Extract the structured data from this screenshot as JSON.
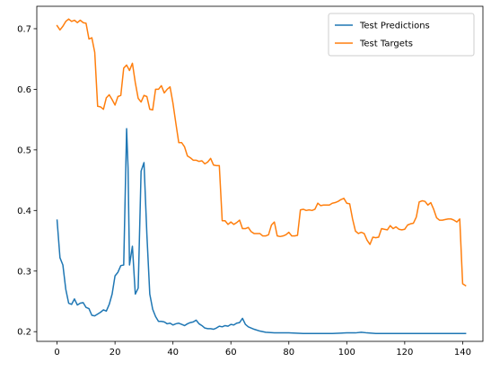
{
  "chart_data": {
    "type": "line",
    "title": "",
    "xlabel": "",
    "ylabel": "",
    "xlim": [
      -7,
      147
    ],
    "ylim": [
      0.184,
      0.737
    ],
    "xticks": [
      0,
      20,
      40,
      60,
      80,
      100,
      120,
      140
    ],
    "yticks": [
      0.2,
      0.3,
      0.4,
      0.5,
      0.6,
      0.7
    ],
    "grid": false,
    "legend_position": "top-right",
    "series": [
      {
        "name": "Test Predictions",
        "color": "#1f77b4",
        "points": [
          [
            0,
            0.384
          ],
          [
            1,
            0.322
          ],
          [
            2,
            0.31
          ],
          [
            3,
            0.27
          ],
          [
            4,
            0.247
          ],
          [
            5,
            0.245
          ],
          [
            6,
            0.254
          ],
          [
            7,
            0.244
          ],
          [
            8,
            0.247
          ],
          [
            9,
            0.248
          ],
          [
            10,
            0.24
          ],
          [
            11,
            0.238
          ],
          [
            12,
            0.227
          ],
          [
            13,
            0.226
          ],
          [
            14,
            0.229
          ],
          [
            15,
            0.232
          ],
          [
            16,
            0.236
          ],
          [
            17,
            0.234
          ],
          [
            18,
            0.245
          ],
          [
            19,
            0.262
          ],
          [
            20,
            0.292
          ],
          [
            21,
            0.298
          ],
          [
            22,
            0.309
          ],
          [
            23,
            0.31
          ],
          [
            24,
            0.535
          ],
          [
            24.5,
            0.47
          ],
          [
            25,
            0.31
          ],
          [
            26,
            0.341
          ],
          [
            27,
            0.262
          ],
          [
            28,
            0.272
          ],
          [
            29,
            0.465
          ],
          [
            30,
            0.479
          ],
          [
            31,
            0.36
          ],
          [
            32,
            0.262
          ],
          [
            33,
            0.237
          ],
          [
            34,
            0.225
          ],
          [
            35,
            0.217
          ],
          [
            36,
            0.217
          ],
          [
            37,
            0.216
          ],
          [
            38,
            0.213
          ],
          [
            39,
            0.214
          ],
          [
            40,
            0.211
          ],
          [
            41,
            0.213
          ],
          [
            42,
            0.214
          ],
          [
            43,
            0.212
          ],
          [
            44,
            0.21
          ],
          [
            45,
            0.213
          ],
          [
            46,
            0.215
          ],
          [
            47,
            0.216
          ],
          [
            48,
            0.219
          ],
          [
            49,
            0.213
          ],
          [
            50,
            0.21
          ],
          [
            51,
            0.206
          ],
          [
            52,
            0.205
          ],
          [
            53,
            0.205
          ],
          [
            54,
            0.204
          ],
          [
            55,
            0.206
          ],
          [
            56,
            0.209
          ],
          [
            57,
            0.208
          ],
          [
            58,
            0.21
          ],
          [
            59,
            0.209
          ],
          [
            60,
            0.212
          ],
          [
            61,
            0.211
          ],
          [
            62,
            0.214
          ],
          [
            63,
            0.215
          ],
          [
            64,
            0.222
          ],
          [
            65,
            0.212
          ],
          [
            66,
            0.208
          ],
          [
            67,
            0.206
          ],
          [
            68,
            0.204
          ],
          [
            70,
            0.201
          ],
          [
            72,
            0.199
          ],
          [
            75,
            0.198
          ],
          [
            80,
            0.198
          ],
          [
            85,
            0.197
          ],
          [
            90,
            0.197
          ],
          [
            95,
            0.197
          ],
          [
            100,
            0.198
          ],
          [
            103,
            0.198
          ],
          [
            105,
            0.199
          ],
          [
            107,
            0.198
          ],
          [
            110,
            0.197
          ],
          [
            120,
            0.197
          ],
          [
            130,
            0.197
          ],
          [
            141,
            0.197
          ]
        ]
      },
      {
        "name": "Test Targets",
        "color": "#ff7f0e",
        "points": [
          [
            0,
            0.705
          ],
          [
            1,
            0.698
          ],
          [
            2,
            0.704
          ],
          [
            3,
            0.712
          ],
          [
            4,
            0.716
          ],
          [
            5,
            0.712
          ],
          [
            6,
            0.714
          ],
          [
            7,
            0.71
          ],
          [
            8,
            0.714
          ],
          [
            9,
            0.71
          ],
          [
            10,
            0.709
          ],
          [
            11,
            0.683
          ],
          [
            12,
            0.685
          ],
          [
            13,
            0.661
          ],
          [
            14,
            0.572
          ],
          [
            15,
            0.571
          ],
          [
            16,
            0.567
          ],
          [
            17,
            0.586
          ],
          [
            18,
            0.591
          ],
          [
            19,
            0.583
          ],
          [
            20,
            0.574
          ],
          [
            21,
            0.588
          ],
          [
            22,
            0.59
          ],
          [
            23,
            0.635
          ],
          [
            24,
            0.64
          ],
          [
            25,
            0.631
          ],
          [
            26,
            0.643
          ],
          [
            27,
            0.611
          ],
          [
            28,
            0.585
          ],
          [
            29,
            0.579
          ],
          [
            30,
            0.59
          ],
          [
            31,
            0.588
          ],
          [
            32,
            0.567
          ],
          [
            33,
            0.566
          ],
          [
            34,
            0.6
          ],
          [
            35,
            0.6
          ],
          [
            36,
            0.606
          ],
          [
            37,
            0.594
          ],
          [
            38,
            0.6
          ],
          [
            39,
            0.604
          ],
          [
            40,
            0.577
          ],
          [
            41,
            0.544
          ],
          [
            42,
            0.512
          ],
          [
            43,
            0.512
          ],
          [
            44,
            0.505
          ],
          [
            45,
            0.49
          ],
          [
            46,
            0.487
          ],
          [
            47,
            0.483
          ],
          [
            48,
            0.483
          ],
          [
            49,
            0.481
          ],
          [
            50,
            0.482
          ],
          [
            51,
            0.477
          ],
          [
            52,
            0.48
          ],
          [
            53,
            0.486
          ],
          [
            54,
            0.475
          ],
          [
            55,
            0.474
          ],
          [
            56,
            0.474
          ],
          [
            57,
            0.383
          ],
          [
            58,
            0.383
          ],
          [
            59,
            0.377
          ],
          [
            60,
            0.381
          ],
          [
            61,
            0.377
          ],
          [
            62,
            0.38
          ],
          [
            63,
            0.384
          ],
          [
            64,
            0.37
          ],
          [
            65,
            0.37
          ],
          [
            66,
            0.372
          ],
          [
            67,
            0.365
          ],
          [
            68,
            0.362
          ],
          [
            69,
            0.362
          ],
          [
            70,
            0.362
          ],
          [
            71,
            0.358
          ],
          [
            72,
            0.358
          ],
          [
            73,
            0.36
          ],
          [
            74,
            0.376
          ],
          [
            75,
            0.381
          ],
          [
            76,
            0.358
          ],
          [
            77,
            0.357
          ],
          [
            78,
            0.358
          ],
          [
            79,
            0.36
          ],
          [
            80,
            0.364
          ],
          [
            81,
            0.358
          ],
          [
            82,
            0.358
          ],
          [
            83,
            0.359
          ],
          [
            84,
            0.401
          ],
          [
            85,
            0.402
          ],
          [
            86,
            0.4
          ],
          [
            87,
            0.401
          ],
          [
            88,
            0.4
          ],
          [
            89,
            0.402
          ],
          [
            90,
            0.412
          ],
          [
            91,
            0.408
          ],
          [
            92,
            0.409
          ],
          [
            93,
            0.409
          ],
          [
            94,
            0.409
          ],
          [
            95,
            0.412
          ],
          [
            96,
            0.413
          ],
          [
            97,
            0.415
          ],
          [
            98,
            0.418
          ],
          [
            99,
            0.42
          ],
          [
            100,
            0.412
          ],
          [
            101,
            0.411
          ],
          [
            102,
            0.386
          ],
          [
            103,
            0.366
          ],
          [
            104,
            0.362
          ],
          [
            105,
            0.364
          ],
          [
            106,
            0.362
          ],
          [
            107,
            0.351
          ],
          [
            108,
            0.344
          ],
          [
            109,
            0.356
          ],
          [
            110,
            0.355
          ],
          [
            111,
            0.356
          ],
          [
            112,
            0.37
          ],
          [
            113,
            0.369
          ],
          [
            114,
            0.368
          ],
          [
            115,
            0.375
          ],
          [
            116,
            0.37
          ],
          [
            117,
            0.373
          ],
          [
            118,
            0.369
          ],
          [
            119,
            0.368
          ],
          [
            120,
            0.369
          ],
          [
            121,
            0.376
          ],
          [
            122,
            0.378
          ],
          [
            123,
            0.379
          ],
          [
            124,
            0.389
          ],
          [
            125,
            0.414
          ],
          [
            126,
            0.416
          ],
          [
            127,
            0.415
          ],
          [
            128,
            0.409
          ],
          [
            129,
            0.413
          ],
          [
            130,
            0.402
          ],
          [
            131,
            0.388
          ],
          [
            132,
            0.384
          ],
          [
            133,
            0.384
          ],
          [
            134,
            0.385
          ],
          [
            135,
            0.386
          ],
          [
            136,
            0.386
          ],
          [
            137,
            0.384
          ],
          [
            138,
            0.381
          ],
          [
            139,
            0.386
          ],
          [
            140,
            0.279
          ],
          [
            141,
            0.276
          ]
        ]
      }
    ]
  }
}
